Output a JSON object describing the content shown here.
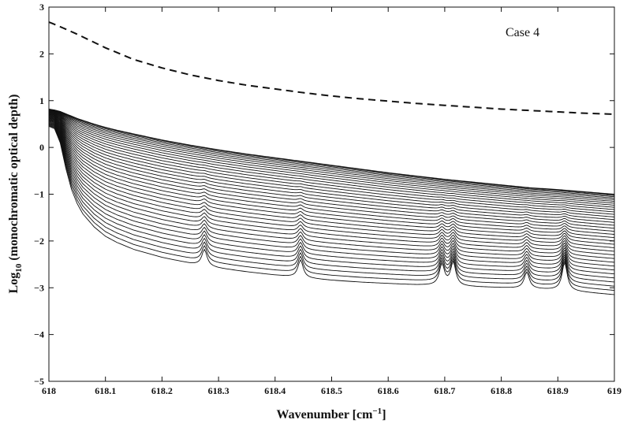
{
  "chart_data": {
    "type": "line",
    "annotation": "Case 4",
    "xlabel_main": "Wavenumber [cm",
    "xlabel_sup": "−1",
    "xlabel_end": "]",
    "ylabel_main": "Log",
    "ylabel_sub": "10",
    "ylabel_rest": " (monochromatic optical depth)",
    "xlim": [
      618,
      619
    ],
    "ylim": [
      -5,
      3
    ],
    "xticks": [
      618,
      618.1,
      618.2,
      618.3,
      618.4,
      618.5,
      618.6,
      618.7,
      618.8,
      618.9,
      619
    ],
    "xtick_labels": [
      "618",
      "618.1",
      "618.2",
      "618.3",
      "618.4",
      "618.5",
      "618.6",
      "618.7",
      "618.8",
      "618.9",
      "619"
    ],
    "yticks": [
      -5,
      -4,
      -3,
      -2,
      -1,
      0,
      1,
      2,
      3
    ],
    "ytick_labels": [
      "−5",
      "−4",
      "−3",
      "−2",
      "−1",
      "0",
      "1",
      "2",
      "3"
    ],
    "grid": false,
    "line_color": "#111111",
    "dashed_series": {
      "x": [
        618,
        618.02,
        618.05,
        618.1,
        618.15,
        618.2,
        618.25,
        618.3,
        618.35,
        618.4,
        618.45,
        618.5,
        618.55,
        618.6,
        618.65,
        618.7,
        618.75,
        618.8,
        618.85,
        618.9,
        618.95,
        619
      ],
      "y": [
        2.68,
        2.58,
        2.42,
        2.13,
        1.88,
        1.7,
        1.55,
        1.43,
        1.33,
        1.25,
        1.17,
        1.1,
        1.04,
        0.99,
        0.94,
        0.9,
        0.86,
        0.82,
        0.79,
        0.76,
        0.73,
        0.71
      ]
    },
    "layer_family": {
      "count": 36,
      "x": [
        618,
        618.01,
        618.02,
        618.03,
        618.04,
        618.05,
        618.06,
        618.08,
        618.1,
        618.12,
        618.15,
        618.2,
        618.25,
        618.3,
        618.35,
        618.4,
        618.45,
        618.5,
        618.55,
        618.6,
        618.65,
        618.7,
        618.75,
        618.8,
        618.85,
        618.9,
        618.95,
        619
      ],
      "top_y": [
        0.82,
        0.8,
        0.77,
        0.72,
        0.67,
        0.62,
        0.58,
        0.5,
        0.43,
        0.37,
        0.29,
        0.16,
        0.05,
        -0.05,
        -0.14,
        -0.22,
        -0.3,
        -0.38,
        -0.46,
        -0.54,
        -0.61,
        -0.68,
        -0.74,
        -0.8,
        -0.86,
        -0.9,
        -0.95,
        -1.0
      ],
      "bottom_y": [
        0.45,
        0.4,
        0.1,
        -0.45,
        -0.9,
        -1.2,
        -1.42,
        -1.7,
        -1.9,
        -2.03,
        -2.18,
        -2.35,
        -2.48,
        -2.58,
        -2.66,
        -2.73,
        -2.79,
        -2.84,
        -2.88,
        -2.91,
        -2.94,
        -2.96,
        -2.98,
        -3.0,
        -3.02,
        -3.05,
        -3.1,
        -3.15
      ],
      "line_features": [
        {
          "x": 618.275,
          "amp": 0.35
        },
        {
          "x": 618.445,
          "amp": 0.38
        },
        {
          "x": 618.695,
          "amp": 0.45
        },
        {
          "x": 618.715,
          "amp": 0.5
        },
        {
          "x": 618.845,
          "amp": 0.35
        },
        {
          "x": 618.912,
          "amp": 0.6
        }
      ]
    }
  }
}
